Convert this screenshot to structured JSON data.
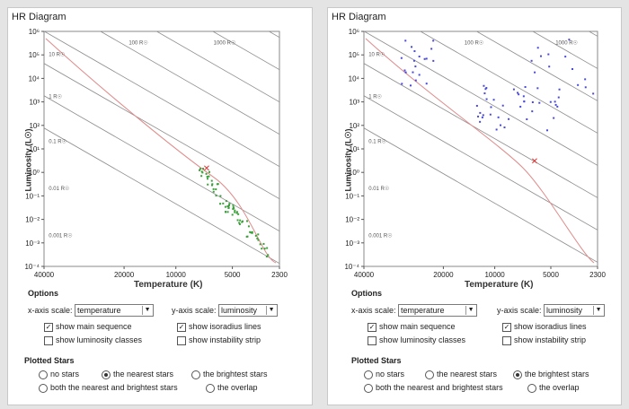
{
  "panels": [
    {
      "id": "left",
      "title": "HR Diagram",
      "y_ticks": [
        "10⁶",
        "10⁵",
        "10⁴",
        "10³",
        "10²",
        "10¹",
        "10⁰",
        "10⁻¹",
        "10⁻²",
        "10⁻³",
        "10⁻⁴"
      ],
      "x_ticks": [
        "40000",
        "20000",
        "10000",
        "5000",
        "2300"
      ],
      "ylabel": "Luminosity (L☉)",
      "xlabel": "Temperature (K)",
      "radius_labels": [
        "1000 R☉",
        "100 R☉",
        "10 R☉",
        "1 R☉",
        "0.1 R☉",
        "0.01 R☉",
        "0.001 R☉"
      ],
      "options_title": "Options",
      "xscale_label": "x-axis scale:",
      "xscale_value": "temperature",
      "yscale_label": "y-axis scale:",
      "yscale_value": "luminosity",
      "cb_main_sequence": "show main sequence",
      "cb_lum_classes": "show luminosity classes",
      "cb_isoradius": "show isoradius lines",
      "cb_instability": "show instability strip",
      "checked": {
        "main_sequence": true,
        "lum_classes": false,
        "isoradius": true,
        "instability": false
      },
      "plotted_title": "Plotted Stars",
      "r_none": "no stars",
      "r_nearest": "the nearest stars",
      "r_brightest": "the brightest stars",
      "r_both": "both the nearest and brightest stars",
      "r_overlap": "the overlap",
      "selected_radio": "nearest",
      "star_color": "#3aa03a"
    },
    {
      "id": "right",
      "title": "HR Diagram",
      "y_ticks": [
        "10⁶",
        "10⁵",
        "10⁴",
        "10³",
        "10²",
        "10¹",
        "10⁰",
        "10⁻¹",
        "10⁻²",
        "10⁻³",
        "10⁻⁴"
      ],
      "x_ticks": [
        "40000",
        "20000",
        "10000",
        "5000",
        "2300"
      ],
      "ylabel": "Luminosity (L☉)",
      "xlabel": "Temperature (K)",
      "radius_labels": [
        "1000 R☉",
        "100 R☉",
        "10 R☉",
        "1 R☉",
        "0.1 R☉",
        "0.01 R☉",
        "0.001 R☉"
      ],
      "options_title": "Options",
      "xscale_label": "x-axis scale:",
      "xscale_value": "temperature",
      "yscale_label": "y-axis scale:",
      "yscale_value": "luminosity",
      "cb_main_sequence": "show main sequence",
      "cb_lum_classes": "show luminosity classes",
      "cb_isoradius": "show isoradius lines",
      "cb_instability": "show instability strip",
      "checked": {
        "main_sequence": true,
        "lum_classes": false,
        "isoradius": true,
        "instability": false
      },
      "plotted_title": "Plotted Stars",
      "r_none": "no stars",
      "r_nearest": "the nearest stars",
      "r_brightest": "the brightest stars",
      "r_both": "both the nearest and brightest stars",
      "r_overlap": "the overlap",
      "selected_radio": "brightest",
      "star_color": "#4a4ad8"
    }
  ],
  "colors": {
    "main_sequence": "#e08a8a",
    "isoradius": "#8c8c8c",
    "sun_marker": "#e23030"
  }
}
